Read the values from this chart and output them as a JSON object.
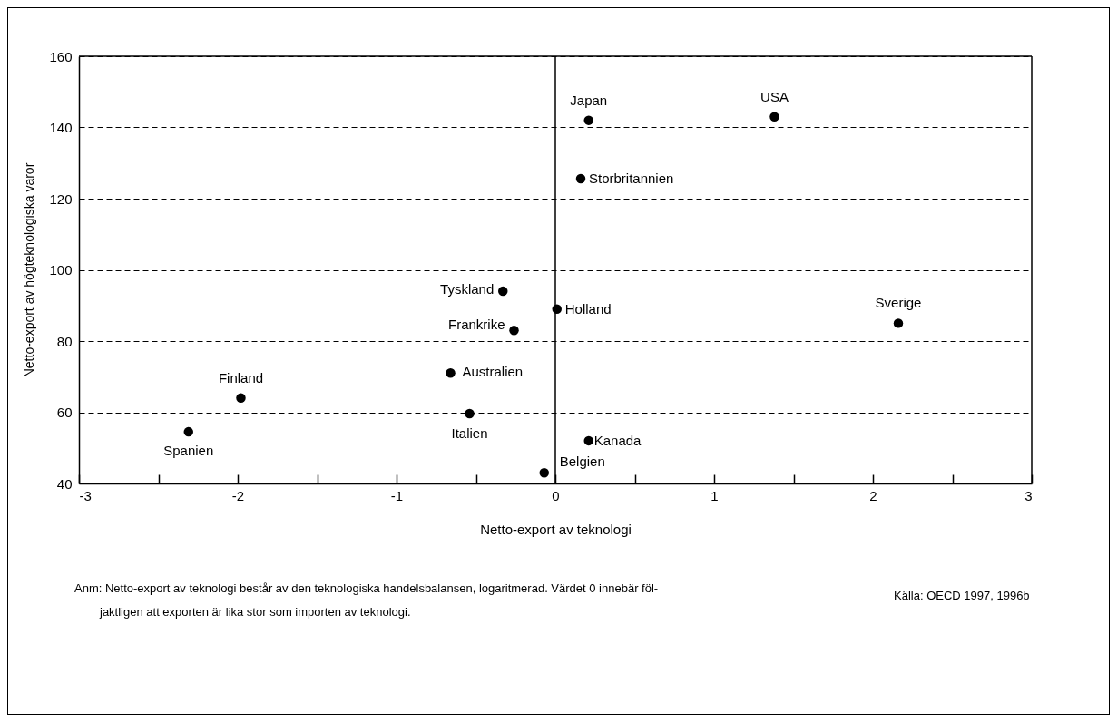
{
  "chart_data": {
    "type": "scatter",
    "xlabel": "Netto-export av teknologi",
    "ylabel": "Netto-export av högteknologiska varor",
    "xlim": [
      -3,
      3
    ],
    "ylim": [
      40,
      160
    ],
    "xticks": [
      -3,
      {
        "value": -2.5,
        "label": null
      },
      -2,
      {
        "value": -1.5,
        "label": null
      },
      -1,
      {
        "value": -0.5,
        "label": null
      },
      0,
      {
        "value": 0.5,
        "label": null
      },
      1,
      {
        "value": 1.5,
        "label": null
      },
      2,
      {
        "value": 2.5,
        "label": null
      },
      3
    ],
    "yticks": [
      40,
      60,
      80,
      100,
      120,
      140,
      160
    ],
    "grid": "y",
    "marker": "circle",
    "ref_lines": [
      {
        "axis": "x",
        "value": 0,
        "color": "#000000",
        "line_style": "solid"
      }
    ],
    "series": [
      {
        "name": "Japan",
        "color": "#000000",
        "x": [
          0.21
        ],
        "values": [
          142
        ]
      },
      {
        "name": "USA",
        "color": "#000000",
        "x": [
          1.38
        ],
        "values": [
          143
        ]
      },
      {
        "name": "Storbritannien",
        "color": "#000000",
        "x": [
          0.16
        ],
        "values": [
          125.6
        ]
      },
      {
        "name": "Tyskland",
        "color": "#000000",
        "x": [
          -0.33
        ],
        "values": [
          94
        ]
      },
      {
        "name": "Holland",
        "color": "#000000",
        "x": [
          0.01
        ],
        "values": [
          89
        ]
      },
      {
        "name": "Frankrike",
        "color": "#000000",
        "x": [
          -0.26
        ],
        "values": [
          83
        ]
      },
      {
        "name": "Sverige",
        "color": "#000000",
        "x": [
          2.16
        ],
        "values": [
          85
        ]
      },
      {
        "name": "Australien",
        "color": "#000000",
        "x": [
          -0.66
        ],
        "values": [
          71
        ]
      },
      {
        "name": "Finland",
        "color": "#000000",
        "x": [
          -1.98
        ],
        "values": [
          64
        ]
      },
      {
        "name": "Spanien",
        "color": "#000000",
        "x": [
          -2.31
        ],
        "values": [
          54.5
        ]
      },
      {
        "name": "Italien",
        "color": "#000000",
        "x": [
          -0.54
        ],
        "values": [
          59.6
        ]
      },
      {
        "name": "Kanada",
        "color": "#000000",
        "x": [
          0.21
        ],
        "values": [
          52
        ]
      },
      {
        "name": "Belgien",
        "color": "#000000",
        "x": [
          -0.07
        ],
        "values": [
          43
        ]
      }
    ],
    "annotations": [
      "Anm: Netto-export av teknologi består av den teknologiska handelsbalansen, logaritmerad. Värdet 0 innebär föl-\njaktligen att exporten är lika stor som importen av teknologi.",
      "Källa: OECD 1997, 1996b"
    ]
  }
}
